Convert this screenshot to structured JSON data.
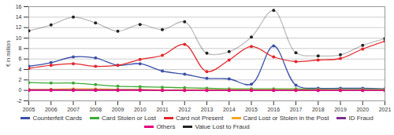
{
  "chart_data": {
    "type": "line",
    "y_label": "€ in million",
    "x": [
      2005,
      2006,
      2007,
      2008,
      2009,
      2010,
      2011,
      2012,
      2013,
      2014,
      2015,
      2016,
      2017,
      2018,
      2019,
      2020,
      2021
    ],
    "xlim": [
      2005,
      2021
    ],
    "xticks": [
      2005,
      2006,
      2007,
      2008,
      2009,
      2010,
      2011,
      2012,
      2013,
      2014,
      2015,
      2016,
      2017,
      2018,
      2019,
      2020,
      2021
    ],
    "ylim": [
      -2,
      16
    ],
    "yticks": [
      -2,
      0,
      2,
      4,
      6,
      8,
      10,
      12,
      14,
      16
    ],
    "grid": true,
    "legend": "bottom",
    "marker": "circle",
    "series": [
      {
        "name": "Counterfeit Cards",
        "color": "#3c50a8",
        "values": [
          4.6,
          5.3,
          6.4,
          6.2,
          4.8,
          5.1,
          3.7,
          3.1,
          2.3,
          2.2,
          1.2,
          8.5,
          1.0,
          0.4,
          0.4,
          0.4,
          0.3
        ]
      },
      {
        "name": "Card Stolen or Lost",
        "color": "#3aaa35",
        "values": [
          1.5,
          1.4,
          1.4,
          1.1,
          0.8,
          0.7,
          0.6,
          0.5,
          0.4,
          0.3,
          0.3,
          0.3,
          0.3,
          0.2,
          0.2,
          0.2,
          0.2
        ]
      },
      {
        "name": "Card not Present",
        "color": "#e4262c",
        "values": [
          4.2,
          4.8,
          5.1,
          4.6,
          4.8,
          5.9,
          6.7,
          8.8,
          3.6,
          5.8,
          8.4,
          6.4,
          5.5,
          5.8,
          6.1,
          7.9,
          9.4
        ]
      },
      {
        "name": "Card Lost or Stolen in the Post",
        "color": "#f5a623",
        "values": [
          0.2,
          0.2,
          0.3,
          0.3,
          0.2,
          0.2,
          0.1,
          0.1,
          0.1,
          0.1,
          0.1,
          0.1,
          0.1,
          0.1,
          0.1,
          0.1,
          0.1
        ]
      },
      {
        "name": "ID Fraud",
        "color": "#7b2d8e",
        "values": [
          0.1,
          0.1,
          0.1,
          0.1,
          0.1,
          0.1,
          0,
          0,
          0,
          0,
          0,
          0,
          0,
          0,
          0,
          0,
          0
        ]
      },
      {
        "name": "Others",
        "color": "#e6007e",
        "values": [
          0,
          0,
          0,
          0,
          0,
          0,
          0,
          0,
          0,
          0,
          0,
          0,
          0,
          0,
          0,
          0,
          0
        ]
      },
      {
        "name": "Value Lost to Fraud",
        "color": "#222222",
        "values": [
          11.4,
          12.5,
          14.0,
          12.9,
          11.3,
          12.6,
          11.6,
          13.1,
          7.1,
          7.4,
          10.2,
          15.3,
          7.2,
          6.6,
          6.8,
          8.6,
          9.9
        ]
      }
    ]
  }
}
